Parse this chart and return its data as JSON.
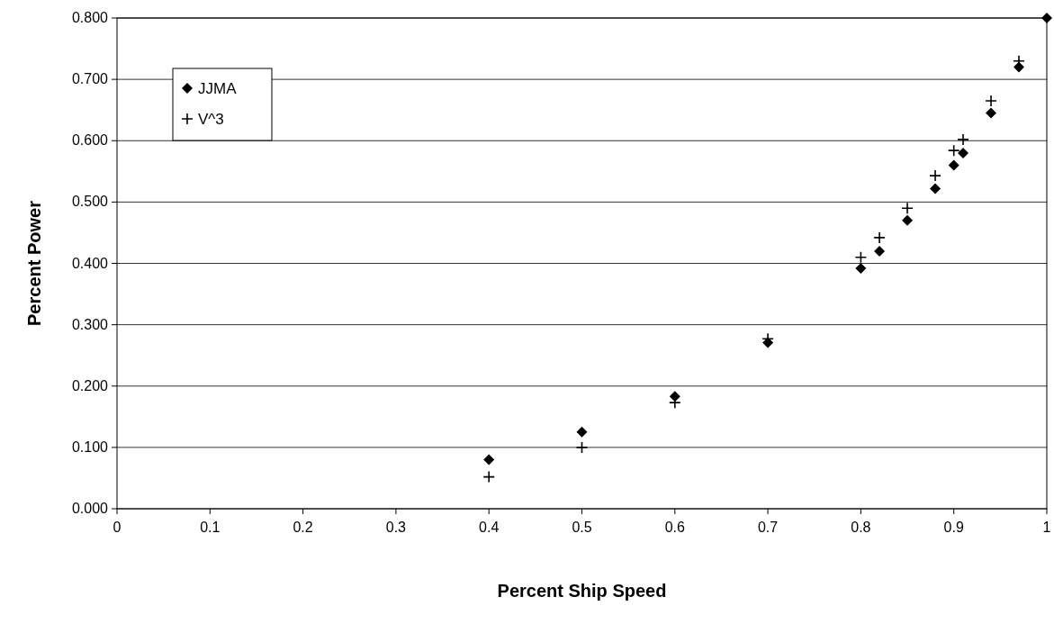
{
  "chart_data": {
    "type": "scatter",
    "xlabel": "Percent Ship Speed",
    "ylabel": "Percent Power",
    "xlim": [
      0,
      1
    ],
    "ylim": [
      0,
      0.8
    ],
    "xticks": [
      0,
      0.1,
      0.2,
      0.3,
      0.4,
      0.5,
      0.6,
      0.7,
      0.8,
      0.9,
      1
    ],
    "yticks": [
      {
        "value": 0,
        "label": "0.000"
      },
      {
        "value": 0.1,
        "label": "0.100"
      },
      {
        "value": 0.2,
        "label": "0.200"
      },
      {
        "value": 0.3,
        "label": "0.300"
      },
      {
        "value": 0.4,
        "label": "0.400"
      },
      {
        "value": 0.5,
        "label": "0.500"
      },
      {
        "value": 0.6,
        "label": "0.600"
      },
      {
        "value": 0.7,
        "label": "0.700"
      },
      {
        "value": 0.8,
        "label": "0.800"
      }
    ],
    "grid": "y",
    "legend": "top left",
    "series": [
      {
        "name": "JJMA",
        "color": "#000000",
        "marker": "diamond",
        "x": [
          0.4,
          0.5,
          0.6,
          0.7,
          0.8,
          0.82,
          0.85,
          0.88,
          0.9,
          0.91,
          0.94,
          0.97,
          1.0
        ],
        "values": [
          0.08,
          0.125,
          0.183,
          0.271,
          0.392,
          0.42,
          0.47,
          0.522,
          0.56,
          0.58,
          0.645,
          0.72,
          0.8
        ]
      },
      {
        "name": "V^3",
        "color": "#000000",
        "marker": "cross",
        "x": [
          0.4,
          0.5,
          0.6,
          0.7,
          0.8,
          0.82,
          0.85,
          0.88,
          0.9,
          0.91,
          0.94,
          0.97
        ],
        "values": [
          0.052,
          0.1,
          0.173,
          0.277,
          0.41,
          0.442,
          0.49,
          0.543,
          0.584,
          0.602,
          0.665,
          0.73
        ]
      }
    ]
  }
}
